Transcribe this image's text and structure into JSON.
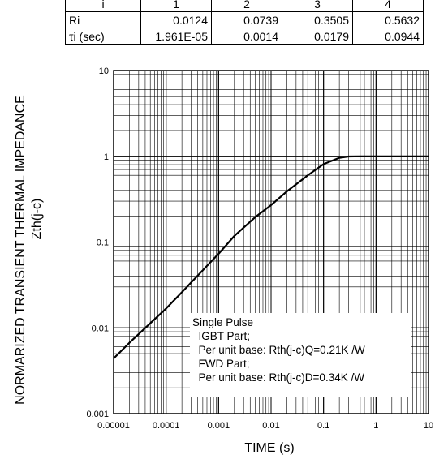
{
  "table": {
    "header": [
      "i",
      "1",
      "2",
      "3",
      "4"
    ],
    "rows": [
      {
        "label": "Ri",
        "values": [
          "0.0124",
          "0.0739",
          "0.3505",
          "0.5632"
        ]
      },
      {
        "label": "τi (sec)",
        "values": [
          "1.961E-05",
          "0.0014",
          "0.0179",
          "0.0944"
        ]
      }
    ]
  },
  "chart_data": {
    "type": "line",
    "title": "",
    "xlabel": "TIME (s)",
    "ylabel": "NORMARIZED TRANSIENT THERMAL IMPEDANCE",
    "ylabel2": "Zth(j-c)",
    "xscale": "log",
    "yscale": "log",
    "xlim": [
      1e-05,
      10
    ],
    "ylim": [
      0.001,
      10
    ],
    "xticks": [
      "0.00001",
      "0.0001",
      "0.001",
      "0.01",
      "0.1",
      "1",
      "10"
    ],
    "yticks": [
      "0.001",
      "0.01",
      "0.1",
      "1",
      "10"
    ],
    "grid": true,
    "series": [
      {
        "x": [
          1e-05,
          2e-05,
          5e-05,
          0.0001,
          0.0002,
          0.0005,
          0.001,
          0.002,
          0.005,
          0.01,
          0.02,
          0.05,
          0.1,
          0.2,
          0.3,
          0.5,
          1,
          2,
          5,
          10
        ],
        "y": [
          0.0044,
          0.0067,
          0.0113,
          0.0168,
          0.026,
          0.047,
          0.073,
          0.118,
          0.195,
          0.27,
          0.39,
          0.6,
          0.81,
          0.96,
          0.995,
          1.0,
          1.0,
          1.0,
          1.0,
          1.0
        ]
      }
    ],
    "annotation": [
      "Single Pulse",
      "  IGBT Part;",
      "  Per unit base: Rth(j-c)Q=0.21K /W",
      "  FWD Part;",
      "  Per unit base: Rth(j-c)D=0.34K /W"
    ]
  }
}
